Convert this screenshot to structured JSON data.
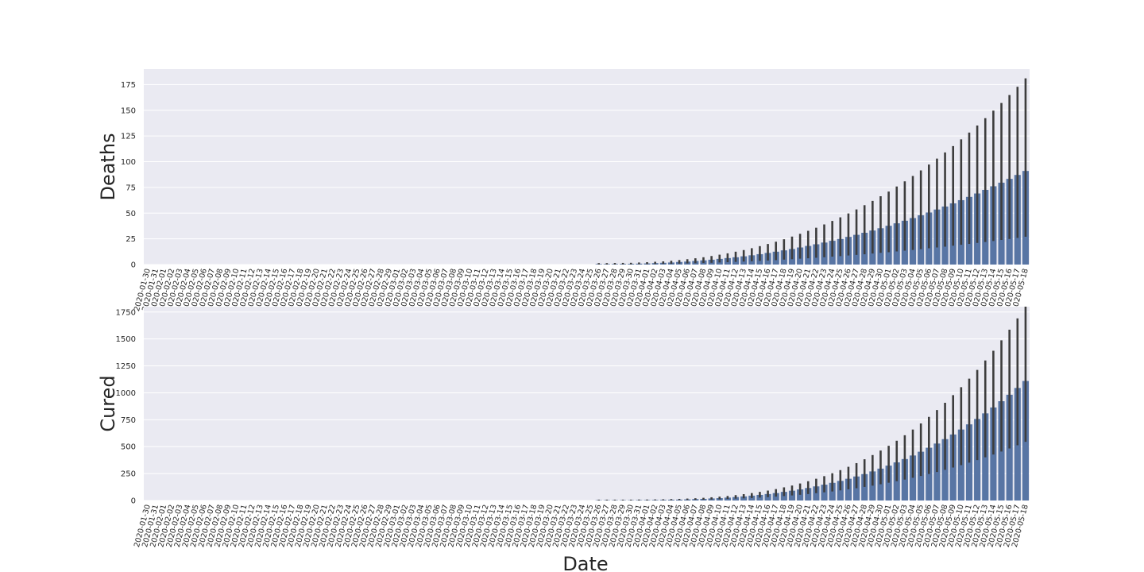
{
  "figure": {
    "background": "#ffffff",
    "panel_background": "#eaeaf2",
    "grid_color": "#ffffff",
    "bar_color": "#5875a4",
    "errorbar_color": "#3d3d3d"
  },
  "chart_data": [
    {
      "type": "bar",
      "title": "",
      "xlabel": "",
      "ylabel": "Deaths",
      "ylim": [
        0,
        190
      ],
      "yticks": [
        0,
        25,
        50,
        75,
        100,
        125,
        150,
        175
      ],
      "grid": true,
      "categories_start": "2020-01-30",
      "categories_end": "2020-05-18",
      "categories": [],
      "series": [
        {
          "values": [],
          "ci_low": [],
          "ci_high": []
        }
      ]
    },
    {
      "type": "bar",
      "title": "",
      "xlabel": "Date",
      "ylabel": "Cured",
      "ylim": [
        0,
        1800
      ],
      "yticks": [
        0,
        250,
        500,
        750,
        1000,
        1250,
        1500,
        1750
      ],
      "grid": true,
      "categories_start": "2020-01-30",
      "categories_end": "2020-05-18",
      "categories": [],
      "series": [
        {
          "values": [],
          "ci_low": [],
          "ci_high": []
        }
      ]
    }
  ]
}
